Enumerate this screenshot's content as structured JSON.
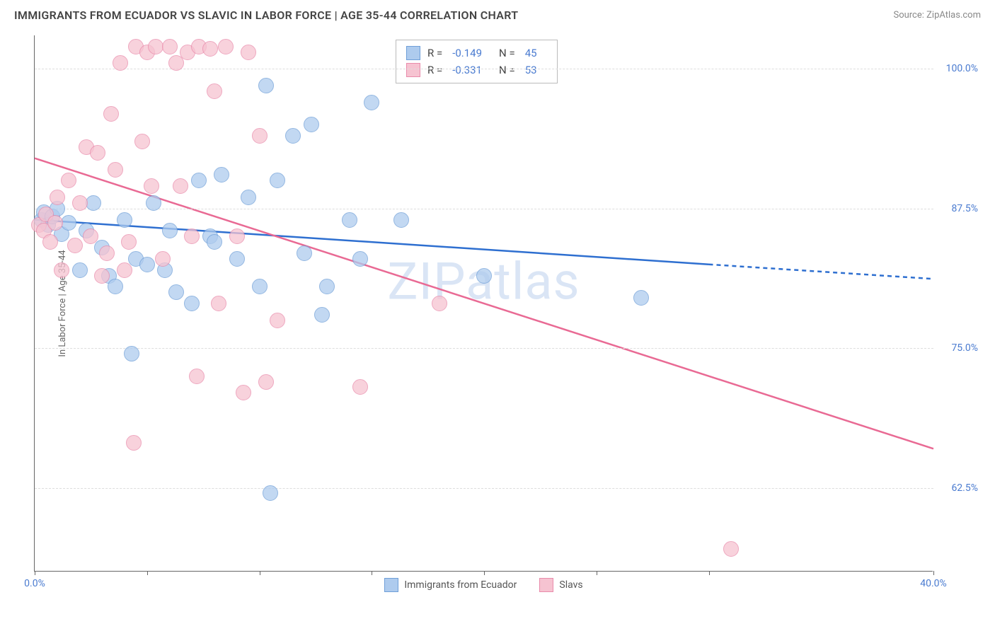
{
  "header": {
    "title": "IMMIGRANTS FROM ECUADOR VS SLAVIC IN LABOR FORCE | AGE 35-44 CORRELATION CHART",
    "source": "Source: ZipAtlas.com"
  },
  "chart": {
    "type": "scatter",
    "ylabel": "In Labor Force | Age 35-44",
    "xlim": [
      0,
      40
    ],
    "ylim": [
      55,
      103
    ],
    "xtick_positions": [
      0,
      5,
      10,
      15,
      20,
      25,
      30,
      40
    ],
    "xtick_labels": {
      "0": "0.0%",
      "40": "40.0%"
    },
    "ytick_positions": [
      62.5,
      75.0,
      87.5,
      100.0
    ],
    "ytick_labels": [
      "62.5%",
      "75.0%",
      "87.5%",
      "100.0%"
    ],
    "grid_color": "#dddddd",
    "axis_color": "#666666",
    "label_color": "#4a7bd0",
    "watermark": "ZIPatlas",
    "series": [
      {
        "name": "Immigrants from Ecuador",
        "fill": "#aecbee",
        "stroke": "#6f9fd8",
        "line_color": "#2e6fd0",
        "r": "-0.149",
        "n": "45",
        "trend": {
          "x1": 0,
          "y1": 86.5,
          "x2": 30,
          "y2": 82.5,
          "ext_x2": 40,
          "ext_y2": 81.2
        },
        "points": [
          [
            0.3,
            86.5
          ],
          [
            0.4,
            87.2
          ],
          [
            0.6,
            86.0
          ],
          [
            0.8,
            86.8
          ],
          [
            1.0,
            87.5
          ],
          [
            1.2,
            85.2
          ],
          [
            1.5,
            86.2
          ],
          [
            2.0,
            82.0
          ],
          [
            2.3,
            85.5
          ],
          [
            2.6,
            88.0
          ],
          [
            3.0,
            84.0
          ],
          [
            3.3,
            81.5
          ],
          [
            3.6,
            80.5
          ],
          [
            4.0,
            86.5
          ],
          [
            4.3,
            74.5
          ],
          [
            4.5,
            83.0
          ],
          [
            5.0,
            82.5
          ],
          [
            5.3,
            88.0
          ],
          [
            5.8,
            82.0
          ],
          [
            6.0,
            85.5
          ],
          [
            6.3,
            80.0
          ],
          [
            7.0,
            79.0
          ],
          [
            7.3,
            90.0
          ],
          [
            7.8,
            85.0
          ],
          [
            8.0,
            84.5
          ],
          [
            8.3,
            90.5
          ],
          [
            9.0,
            83.0
          ],
          [
            9.5,
            88.5
          ],
          [
            10.0,
            80.5
          ],
          [
            10.3,
            98.5
          ],
          [
            10.8,
            90.0
          ],
          [
            11.5,
            94.0
          ],
          [
            12.0,
            83.5
          ],
          [
            12.3,
            95.0
          ],
          [
            12.8,
            78.0
          ],
          [
            13.0,
            80.5
          ],
          [
            14.0,
            86.5
          ],
          [
            14.5,
            83.0
          ],
          [
            15.0,
            97.0
          ],
          [
            16.3,
            86.5
          ],
          [
            20.0,
            81.5
          ],
          [
            10.5,
            62.0
          ],
          [
            27.0,
            79.5
          ]
        ]
      },
      {
        "name": "Slavs",
        "fill": "#f6c3d1",
        "stroke": "#e98bab",
        "line_color": "#e96a94",
        "r": "-0.331",
        "n": "53",
        "trend": {
          "x1": 0,
          "y1": 92.0,
          "x2": 40,
          "y2": 66.0
        },
        "points": [
          [
            0.2,
            86.0
          ],
          [
            0.4,
            85.5
          ],
          [
            0.5,
            87.0
          ],
          [
            0.7,
            84.5
          ],
          [
            0.9,
            86.2
          ],
          [
            1.0,
            88.5
          ],
          [
            1.2,
            82.0
          ],
          [
            1.5,
            90.0
          ],
          [
            1.8,
            84.2
          ],
          [
            2.0,
            88.0
          ],
          [
            2.3,
            93.0
          ],
          [
            2.5,
            85.0
          ],
          [
            2.8,
            92.5
          ],
          [
            3.0,
            81.5
          ],
          [
            3.2,
            83.5
          ],
          [
            3.4,
            96.0
          ],
          [
            3.6,
            91.0
          ],
          [
            3.8,
            100.5
          ],
          [
            4.0,
            82.0
          ],
          [
            4.2,
            84.5
          ],
          [
            4.4,
            66.5
          ],
          [
            4.5,
            102.0
          ],
          [
            4.8,
            93.5
          ],
          [
            5.0,
            101.5
          ],
          [
            5.2,
            89.5
          ],
          [
            5.4,
            102.0
          ],
          [
            5.7,
            83.0
          ],
          [
            6.0,
            102.0
          ],
          [
            6.3,
            100.5
          ],
          [
            6.5,
            89.5
          ],
          [
            6.8,
            101.5
          ],
          [
            7.0,
            85.0
          ],
          [
            7.2,
            72.5
          ],
          [
            7.3,
            102.0
          ],
          [
            7.8,
            101.8
          ],
          [
            8.0,
            98.0
          ],
          [
            8.2,
            79.0
          ],
          [
            8.5,
            102.0
          ],
          [
            9.0,
            85.0
          ],
          [
            9.3,
            71.0
          ],
          [
            9.5,
            101.5
          ],
          [
            10.0,
            94.0
          ],
          [
            10.3,
            72.0
          ],
          [
            10.8,
            77.5
          ],
          [
            14.5,
            71.5
          ],
          [
            18.0,
            79.0
          ],
          [
            31.0,
            57.0
          ]
        ]
      }
    ],
    "bottom_legend": [
      {
        "label": "Immigrants from Ecuador",
        "fill": "#aecbee",
        "stroke": "#6f9fd8"
      },
      {
        "label": "Slavs",
        "fill": "#f6c3d1",
        "stroke": "#e98bab"
      }
    ]
  }
}
